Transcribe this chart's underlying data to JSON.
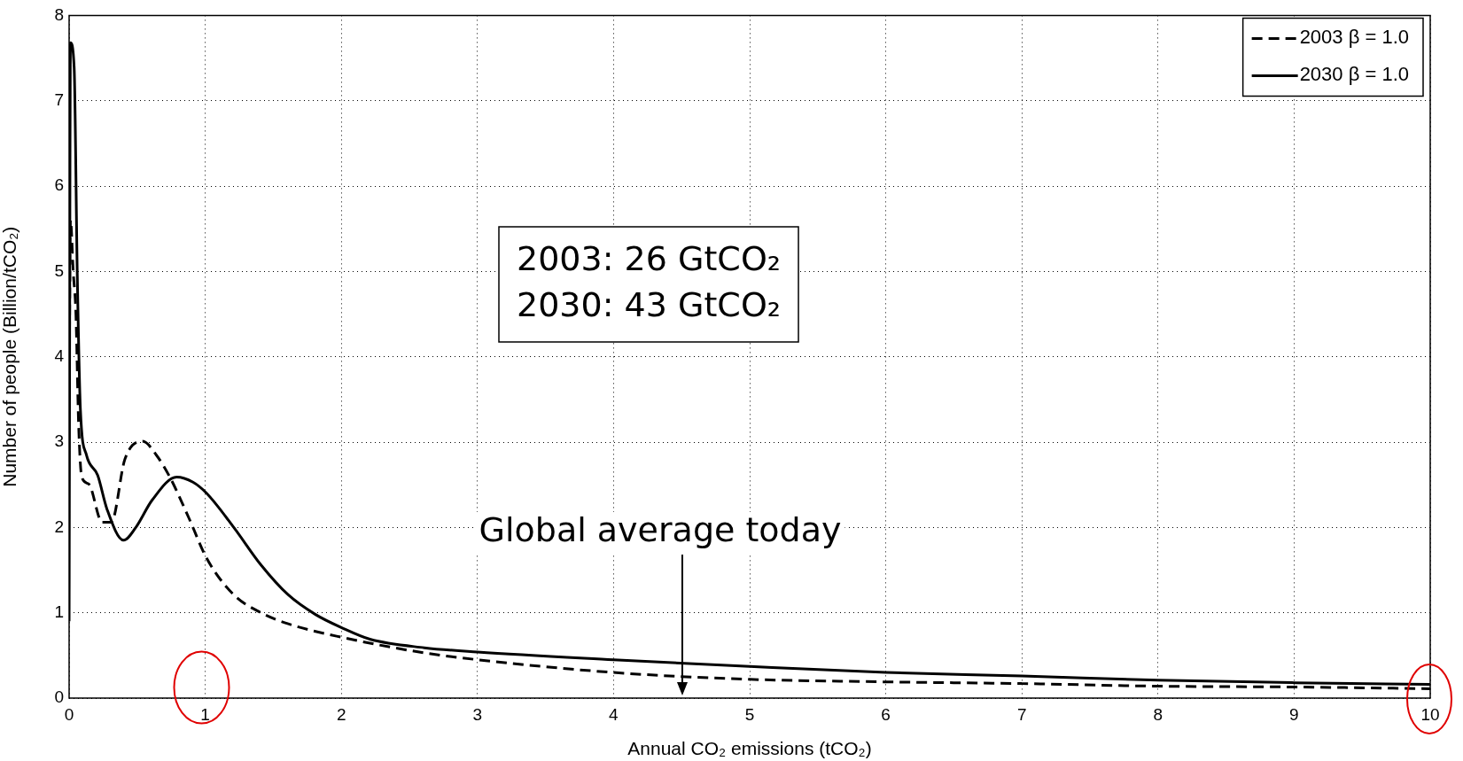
{
  "chart_data": {
    "type": "line",
    "xlabel": "Annual CO₂ emissions (tCO₂)",
    "ylabel": "Number of people (Billion/tCO₂)",
    "xlim": [
      0,
      10
    ],
    "ylim": [
      0,
      8
    ],
    "xticks": [
      0,
      1,
      2,
      3,
      4,
      5,
      6,
      7,
      8,
      9,
      10
    ],
    "yticks": [
      0,
      1,
      2,
      3,
      4,
      5,
      6,
      7,
      8
    ],
    "grid": true,
    "legend": "top right",
    "marker": "none",
    "series": [
      {
        "name": "2003 β = 1.0",
        "color": "#000000",
        "line_style": "dashed",
        "x": [
          0,
          0.01,
          0.03,
          0.05,
          0.07,
          0.093,
          0.143,
          0.243,
          0.31,
          0.41,
          0.54,
          0.64,
          0.74,
          0.88,
          1.01,
          1.21,
          1.41,
          1.61,
          2.01,
          2.61,
          3,
          4,
          5,
          6,
          7,
          8,
          9,
          10
        ],
        "values": [
          3.5,
          5.6,
          5.0,
          4.5,
          3.2,
          2.59,
          2.51,
          2.06,
          2.06,
          2.8,
          3.01,
          2.85,
          2.59,
          2.11,
          1.64,
          1.21,
          1.0,
          0.87,
          0.71,
          0.53,
          0.45,
          0.3,
          0.22,
          0.19,
          0.17,
          0.14,
          0.13,
          0.11
        ]
      },
      {
        "name": "2030 β = 1.0",
        "color": "#000000",
        "line_style": "solid",
        "x": [
          0,
          0.01,
          0.037,
          0.06,
          0.083,
          0.127,
          0.21,
          0.277,
          0.4,
          0.49,
          0.61,
          0.79,
          0.91,
          1.01,
          1.21,
          1.41,
          1.61,
          1.81,
          2.01,
          2.21,
          2.61,
          3,
          4,
          5,
          6,
          7,
          8,
          9,
          10
        ],
        "values": [
          0.9,
          7.68,
          7.39,
          4.96,
          3.38,
          2.85,
          2.61,
          2.22,
          1.85,
          2.0,
          2.32,
          2.59,
          2.53,
          2.4,
          2.0,
          1.56,
          1.21,
          0.98,
          0.82,
          0.69,
          0.59,
          0.54,
          0.45,
          0.37,
          0.3,
          0.26,
          0.21,
          0.18,
          0.16
        ]
      }
    ],
    "annotations": [
      "2003: 26 GtCO₂",
      "2030: 43 GtCO₂",
      "Global average today"
    ]
  }
}
